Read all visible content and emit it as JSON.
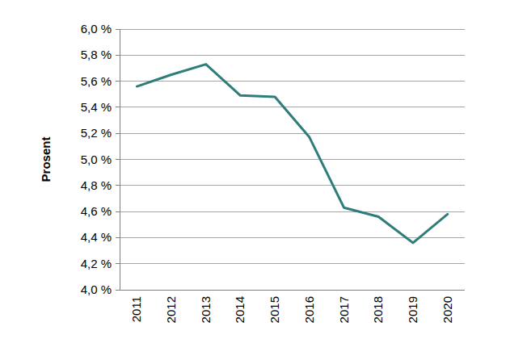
{
  "chart_data": {
    "type": "line",
    "y_label": "Prosent",
    "categories": [
      "2011",
      "2012",
      "2013",
      "2014",
      "2015",
      "2016",
      "2017",
      "2018",
      "2019",
      "2020"
    ],
    "values": [
      5.56,
      5.65,
      5.73,
      5.49,
      5.48,
      5.17,
      4.63,
      4.56,
      4.36,
      4.58
    ],
    "color": "#2e7d7a",
    "ylim": [
      4.0,
      6.0
    ],
    "yticks": [
      {
        "value": 4.0,
        "label": "4,0 %"
      },
      {
        "value": 4.2,
        "label": "4,2 %"
      },
      {
        "value": 4.4,
        "label": "4,4 %"
      },
      {
        "value": 4.6,
        "label": "4,6 %"
      },
      {
        "value": 4.8,
        "label": "4,8 %"
      },
      {
        "value": 5.0,
        "label": "5,0 %"
      },
      {
        "value": 5.2,
        "label": "5,2 %"
      },
      {
        "value": 5.4,
        "label": "5,4 %"
      },
      {
        "value": 5.6,
        "label": "5,6 %"
      },
      {
        "value": 5.8,
        "label": "5,8 %"
      },
      {
        "value": 6.0,
        "label": "6,0 %"
      }
    ],
    "grid": true
  }
}
